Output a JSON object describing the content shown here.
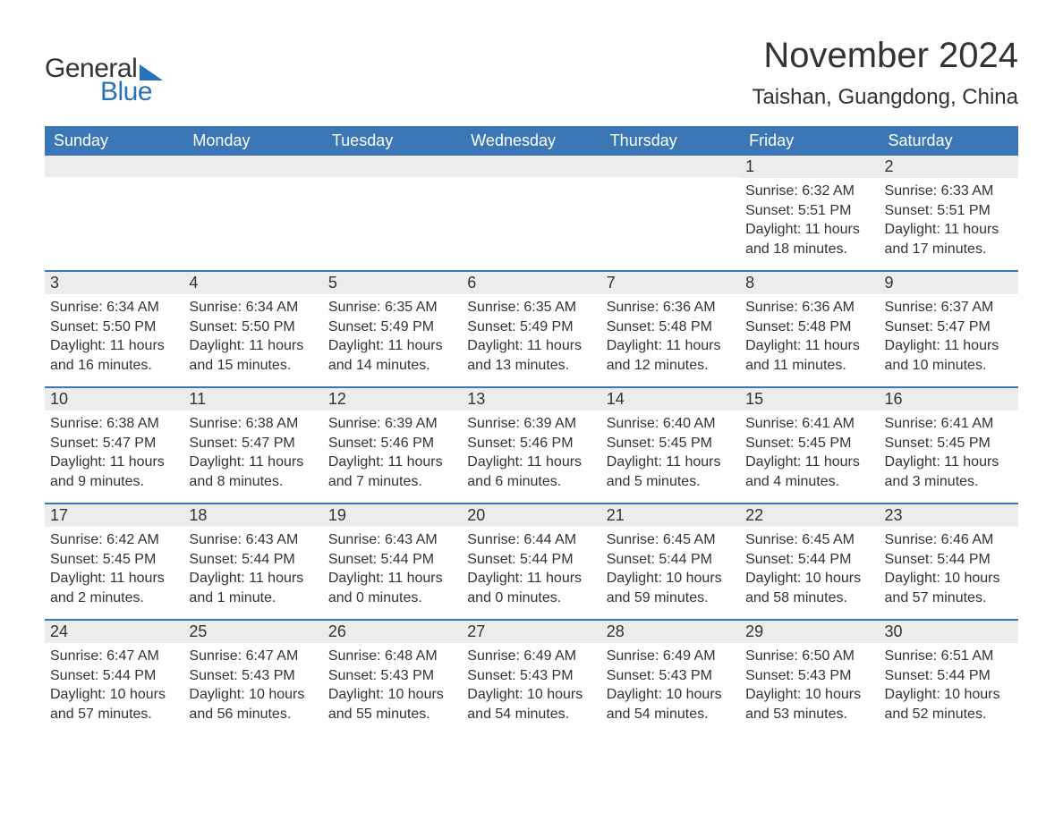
{
  "logo": {
    "general": "General",
    "blue": "Blue"
  },
  "title": "November 2024",
  "location": "Taishan, Guangdong, China",
  "colors": {
    "header_bg": "#3b77b7",
    "header_text": "#ffffff",
    "daynum_bg": "#ececec",
    "text": "#333333",
    "accent": "#2b70ba",
    "background": "#ffffff"
  },
  "typography": {
    "title_fontsize": 40,
    "location_fontsize": 24,
    "header_fontsize": 18,
    "daynum_fontsize": 18,
    "body_fontsize": 16
  },
  "layout": {
    "columns": 7,
    "rows": 5,
    "cell_min_height": 128
  },
  "weekdays": [
    "Sunday",
    "Monday",
    "Tuesday",
    "Wednesday",
    "Thursday",
    "Friday",
    "Saturday"
  ],
  "weeks": [
    [
      {},
      {},
      {},
      {},
      {},
      {
        "num": "1",
        "sunrise": "Sunrise: 6:32 AM",
        "sunset": "Sunset: 5:51 PM",
        "daylight": "Daylight: 11 hours and 18 minutes."
      },
      {
        "num": "2",
        "sunrise": "Sunrise: 6:33 AM",
        "sunset": "Sunset: 5:51 PM",
        "daylight": "Daylight: 11 hours and 17 minutes."
      }
    ],
    [
      {
        "num": "3",
        "sunrise": "Sunrise: 6:34 AM",
        "sunset": "Sunset: 5:50 PM",
        "daylight": "Daylight: 11 hours and 16 minutes."
      },
      {
        "num": "4",
        "sunrise": "Sunrise: 6:34 AM",
        "sunset": "Sunset: 5:50 PM",
        "daylight": "Daylight: 11 hours and 15 minutes."
      },
      {
        "num": "5",
        "sunrise": "Sunrise: 6:35 AM",
        "sunset": "Sunset: 5:49 PM",
        "daylight": "Daylight: 11 hours and 14 minutes."
      },
      {
        "num": "6",
        "sunrise": "Sunrise: 6:35 AM",
        "sunset": "Sunset: 5:49 PM",
        "daylight": "Daylight: 11 hours and 13 minutes."
      },
      {
        "num": "7",
        "sunrise": "Sunrise: 6:36 AM",
        "sunset": "Sunset: 5:48 PM",
        "daylight": "Daylight: 11 hours and 12 minutes."
      },
      {
        "num": "8",
        "sunrise": "Sunrise: 6:36 AM",
        "sunset": "Sunset: 5:48 PM",
        "daylight": "Daylight: 11 hours and 11 minutes."
      },
      {
        "num": "9",
        "sunrise": "Sunrise: 6:37 AM",
        "sunset": "Sunset: 5:47 PM",
        "daylight": "Daylight: 11 hours and 10 minutes."
      }
    ],
    [
      {
        "num": "10",
        "sunrise": "Sunrise: 6:38 AM",
        "sunset": "Sunset: 5:47 PM",
        "daylight": "Daylight: 11 hours and 9 minutes."
      },
      {
        "num": "11",
        "sunrise": "Sunrise: 6:38 AM",
        "sunset": "Sunset: 5:47 PM",
        "daylight": "Daylight: 11 hours and 8 minutes."
      },
      {
        "num": "12",
        "sunrise": "Sunrise: 6:39 AM",
        "sunset": "Sunset: 5:46 PM",
        "daylight": "Daylight: 11 hours and 7 minutes."
      },
      {
        "num": "13",
        "sunrise": "Sunrise: 6:39 AM",
        "sunset": "Sunset: 5:46 PM",
        "daylight": "Daylight: 11 hours and 6 minutes."
      },
      {
        "num": "14",
        "sunrise": "Sunrise: 6:40 AM",
        "sunset": "Sunset: 5:45 PM",
        "daylight": "Daylight: 11 hours and 5 minutes."
      },
      {
        "num": "15",
        "sunrise": "Sunrise: 6:41 AM",
        "sunset": "Sunset: 5:45 PM",
        "daylight": "Daylight: 11 hours and 4 minutes."
      },
      {
        "num": "16",
        "sunrise": "Sunrise: 6:41 AM",
        "sunset": "Sunset: 5:45 PM",
        "daylight": "Daylight: 11 hours and 3 minutes."
      }
    ],
    [
      {
        "num": "17",
        "sunrise": "Sunrise: 6:42 AM",
        "sunset": "Sunset: 5:45 PM",
        "daylight": "Daylight: 11 hours and 2 minutes."
      },
      {
        "num": "18",
        "sunrise": "Sunrise: 6:43 AM",
        "sunset": "Sunset: 5:44 PM",
        "daylight": "Daylight: 11 hours and 1 minute."
      },
      {
        "num": "19",
        "sunrise": "Sunrise: 6:43 AM",
        "sunset": "Sunset: 5:44 PM",
        "daylight": "Daylight: 11 hours and 0 minutes."
      },
      {
        "num": "20",
        "sunrise": "Sunrise: 6:44 AM",
        "sunset": "Sunset: 5:44 PM",
        "daylight": "Daylight: 11 hours and 0 minutes."
      },
      {
        "num": "21",
        "sunrise": "Sunrise: 6:45 AM",
        "sunset": "Sunset: 5:44 PM",
        "daylight": "Daylight: 10 hours and 59 minutes."
      },
      {
        "num": "22",
        "sunrise": "Sunrise: 6:45 AM",
        "sunset": "Sunset: 5:44 PM",
        "daylight": "Daylight: 10 hours and 58 minutes."
      },
      {
        "num": "23",
        "sunrise": "Sunrise: 6:46 AM",
        "sunset": "Sunset: 5:44 PM",
        "daylight": "Daylight: 10 hours and 57 minutes."
      }
    ],
    [
      {
        "num": "24",
        "sunrise": "Sunrise: 6:47 AM",
        "sunset": "Sunset: 5:44 PM",
        "daylight": "Daylight: 10 hours and 57 minutes."
      },
      {
        "num": "25",
        "sunrise": "Sunrise: 6:47 AM",
        "sunset": "Sunset: 5:43 PM",
        "daylight": "Daylight: 10 hours and 56 minutes."
      },
      {
        "num": "26",
        "sunrise": "Sunrise: 6:48 AM",
        "sunset": "Sunset: 5:43 PM",
        "daylight": "Daylight: 10 hours and 55 minutes."
      },
      {
        "num": "27",
        "sunrise": "Sunrise: 6:49 AM",
        "sunset": "Sunset: 5:43 PM",
        "daylight": "Daylight: 10 hours and 54 minutes."
      },
      {
        "num": "28",
        "sunrise": "Sunrise: 6:49 AM",
        "sunset": "Sunset: 5:43 PM",
        "daylight": "Daylight: 10 hours and 54 minutes."
      },
      {
        "num": "29",
        "sunrise": "Sunrise: 6:50 AM",
        "sunset": "Sunset: 5:43 PM",
        "daylight": "Daylight: 10 hours and 53 minutes."
      },
      {
        "num": "30",
        "sunrise": "Sunrise: 6:51 AM",
        "sunset": "Sunset: 5:44 PM",
        "daylight": "Daylight: 10 hours and 52 minutes."
      }
    ]
  ]
}
